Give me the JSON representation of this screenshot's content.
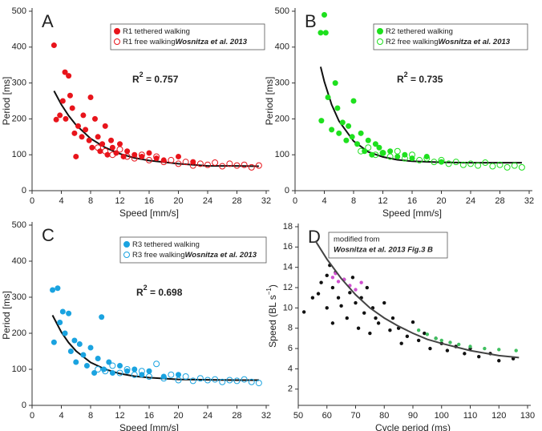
{
  "chart_data": [
    {
      "type": "scatter",
      "panel": "A",
      "xlabel": "Speed [mm/s]",
      "ylabel": "Period [ms]",
      "xlim": [
        0,
        32
      ],
      "xticks": [
        0,
        4,
        8,
        12,
        16,
        20,
        24,
        28,
        32
      ],
      "ylim": [
        0,
        500
      ],
      "yticks": [
        0,
        100,
        200,
        300,
        400,
        500
      ],
      "series": [
        {
          "name": "R1 tethered walking",
          "color": "#e8141b",
          "marker": "filled",
          "x": [
            3,
            3.3,
            3.8,
            4.2,
            4.5,
            4.6,
            5,
            5.2,
            5.5,
            5.8,
            6,
            6.3,
            6.8,
            7,
            7.3,
            7.8,
            8,
            8.2,
            8.6,
            9,
            9.3,
            9.6,
            10,
            10.3,
            10.8,
            11,
            11.5,
            12,
            12.5,
            13,
            14,
            15,
            16,
            17,
            18,
            20,
            22
          ],
          "y": [
            405,
            198,
            210,
            250,
            330,
            200,
            320,
            265,
            230,
            160,
            95,
            180,
            150,
            210,
            170,
            140,
            260,
            120,
            200,
            150,
            110,
            130,
            180,
            100,
            140,
            120,
            105,
            130,
            95,
            110,
            100,
            95,
            105,
            90,
            85,
            95,
            80
          ]
        },
        {
          "name": "R1 free walking",
          "citation": "Wosnitza et al. 2013",
          "color": "#e8141b",
          "marker": "open",
          "x": [
            9,
            10,
            11,
            12,
            13,
            14,
            15,
            16,
            17,
            18,
            19,
            20,
            21,
            22,
            23,
            24,
            25,
            26,
            27,
            28,
            29,
            30,
            31
          ],
          "y": [
            120,
            110,
            100,
            115,
            95,
            90,
            100,
            85,
            95,
            80,
            85,
            75,
            80,
            70,
            75,
            72,
            78,
            68,
            75,
            70,
            72,
            65,
            70
          ]
        }
      ],
      "fit": {
        "color": "#111111",
        "x": [
          3,
          4,
          5,
          6,
          8,
          10,
          12,
          14,
          16,
          20,
          24,
          28,
          31
        ],
        "y": [
          278,
          240,
          209,
          183,
          145,
          120,
          103,
          91,
          84,
          75,
          69,
          69,
          68
        ]
      },
      "annotation": {
        "text": "R",
        "sup": "2",
        "rest": " = 0.757"
      }
    },
    {
      "type": "scatter",
      "panel": "B",
      "xlabel": "Speed [mm/s]",
      "ylabel": "Period [ms]",
      "xlim": [
        0,
        32
      ],
      "xticks": [
        0,
        4,
        8,
        12,
        16,
        20,
        24,
        28,
        32
      ],
      "ylim": [
        0,
        500
      ],
      "yticks": [
        0,
        100,
        200,
        300,
        400,
        500
      ],
      "series": [
        {
          "name": "R2 tethered walking",
          "color": "#1ee01e",
          "marker": "filled",
          "x": [
            3.5,
            4,
            4.2,
            3.6,
            4.5,
            5,
            5.5,
            5.8,
            6,
            6.5,
            7,
            7.3,
            7.8,
            8,
            8.5,
            9,
            9.5,
            10,
            10.5,
            11,
            11.5,
            12,
            13,
            14,
            15,
            16,
            18,
            20
          ],
          "y": [
            440,
            490,
            440,
            195,
            260,
            170,
            300,
            230,
            160,
            190,
            140,
            180,
            150,
            250,
            130,
            160,
            110,
            140,
            100,
            130,
            120,
            105,
            110,
            95,
            100,
            90,
            95,
            80
          ]
        },
        {
          "name": "R2 free walking",
          "citation": "Wosnitza et al. 2013",
          "color": "#1ee01e",
          "marker": "open",
          "x": [
            9,
            10,
            11,
            12,
            13,
            14,
            15,
            16,
            17,
            18,
            19,
            20,
            21,
            22,
            23,
            24,
            25,
            26,
            27,
            28,
            29,
            30,
            31
          ],
          "y": [
            110,
            120,
            100,
            105,
            95,
            110,
            90,
            100,
            85,
            90,
            80,
            85,
            75,
            80,
            72,
            75,
            70,
            78,
            68,
            72,
            65,
            70,
            65
          ]
        }
      ],
      "fit": {
        "color": "#111111",
        "x": [
          3.5,
          4,
          5,
          6,
          8,
          10,
          12,
          14,
          16,
          20,
          24,
          28,
          31
        ],
        "y": [
          345,
          304,
          240,
          194,
          138,
          108,
          94,
          86,
          82,
          79,
          78,
          78,
          78
        ]
      },
      "annotation": {
        "text": "R",
        "sup": "2",
        "rest": " = 0.735"
      }
    },
    {
      "type": "scatter",
      "panel": "C",
      "xlabel": "Speed [mm/s]",
      "ylabel": "Period [ms]",
      "xlim": [
        0,
        32
      ],
      "xticks": [
        0,
        4,
        8,
        12,
        16,
        20,
        24,
        28,
        32
      ],
      "ylim": [
        0,
        500
      ],
      "yticks": [
        0,
        100,
        200,
        300,
        400,
        500
      ],
      "series": [
        {
          "name": "R3 tethered walking",
          "color": "#1aa3e0",
          "marker": "filled",
          "x": [
            2.8,
            3.5,
            3,
            3.8,
            4.2,
            4.5,
            5,
            5.3,
            5.8,
            6,
            6.5,
            7,
            7.5,
            8,
            8.5,
            9,
            9.5,
            9.8,
            10.5,
            11,
            12,
            13,
            14,
            15,
            16,
            18,
            20
          ],
          "y": [
            320,
            325,
            175,
            230,
            260,
            200,
            255,
            150,
            180,
            120,
            170,
            140,
            110,
            160,
            90,
            130,
            245,
            100,
            120,
            90,
            110,
            95,
            100,
            85,
            95,
            80,
            85
          ]
        },
        {
          "name": "R3 free walking",
          "citation": "Wosnitza et al. 2013",
          "color": "#1aa3e0",
          "marker": "open",
          "x": [
            9,
            10,
            11,
            12,
            13,
            14,
            15,
            16,
            17,
            18,
            19,
            20,
            21,
            22,
            23,
            24,
            25,
            26,
            27,
            28,
            29,
            30,
            31
          ],
          "y": [
            100,
            95,
            110,
            90,
            100,
            85,
            95,
            80,
            115,
            75,
            85,
            70,
            80,
            68,
            75,
            70,
            72,
            65,
            70,
            68,
            72,
            65,
            62
          ]
        }
      ],
      "fit": {
        "color": "#111111",
        "x": [
          2.8,
          4,
          5,
          6,
          8,
          10,
          12,
          14,
          16,
          20,
          24,
          28,
          31
        ],
        "y": [
          250,
          203,
          174,
          151,
          119,
          100,
          88,
          81,
          77,
          72,
          71,
          70,
          70
        ]
      },
      "annotation": {
        "text": "R",
        "sup": "2",
        "rest": " = 0.698"
      }
    },
    {
      "type": "scatter",
      "panel": "D",
      "xlabel": "Cycle period (ms)",
      "ylabel": "Speed (BL s",
      "ylabel_sup": "−1",
      "ylabel_end": ")",
      "xlim": [
        50,
        130
      ],
      "xticks": [
        50,
        60,
        70,
        80,
        90,
        100,
        110,
        120,
        130
      ],
      "ylim": [
        0.4,
        18
      ],
      "yticks": [
        2,
        4,
        6,
        8,
        10,
        12,
        14,
        16,
        18
      ],
      "note": [
        "modified from",
        "Wosnitza et al. 2013 Fig.3 B"
      ],
      "series": [
        {
          "color": "#111111",
          "marker": "dot",
          "x": [
            52,
            55,
            57,
            58,
            60,
            60,
            61,
            62,
            62,
            63,
            64,
            65,
            66,
            67,
            68,
            69,
            70,
            71,
            72,
            73,
            74,
            75,
            76,
            77,
            78,
            80,
            82,
            83,
            85,
            86,
            88,
            90,
            92,
            94,
            96,
            98,
            100,
            102,
            105,
            108,
            110,
            113,
            117,
            120,
            125
          ],
          "y": [
            9.6,
            11,
            11.4,
            12.5,
            13.2,
            10,
            14.2,
            12,
            8.5,
            13.5,
            11,
            10.2,
            12.8,
            9,
            11.5,
            13,
            10.5,
            8,
            11,
            9.5,
            12,
            7.5,
            10,
            9,
            8.5,
            10.5,
            7.8,
            9,
            8,
            6.5,
            7.2,
            8.6,
            6.8,
            7.5,
            6,
            7,
            6.5,
            5.8,
            6.2,
            5.5,
            6,
            5.2,
            5.5,
            4.8,
            5
          ]
        },
        {
          "color": "#d050d0",
          "marker": "dot",
          "x": [
            62,
            64,
            66,
            68,
            70,
            72,
            63
          ],
          "y": [
            13,
            12.6,
            12.8,
            12.2,
            11.8,
            12.5,
            13.4
          ]
        },
        {
          "color": "#40c060",
          "marker": "dot",
          "x": [
            92,
            95,
            98,
            100,
            103,
            106,
            110,
            115,
            120,
            126
          ],
          "y": [
            7.8,
            7.4,
            7,
            6.8,
            6.6,
            6.4,
            6.2,
            6,
            5.9,
            5.8
          ]
        }
      ],
      "fit": {
        "color": "#444444",
        "x": [
          56,
          60,
          65,
          70,
          75,
          80,
          85,
          90,
          95,
          100,
          110,
          120,
          127
        ],
        "y": [
          16.6,
          14.8,
          12.9,
          11.3,
          10,
          9,
          8.2,
          7.5,
          6.9,
          6.5,
          5.8,
          5.3,
          5.1
        ]
      }
    }
  ]
}
